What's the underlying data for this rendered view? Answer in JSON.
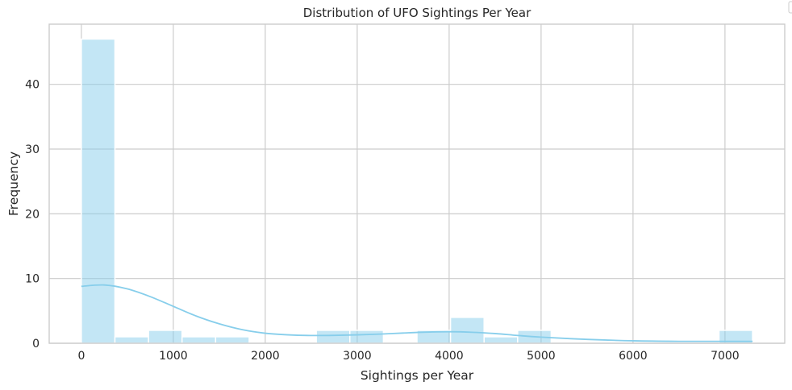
{
  "chart_data": {
    "type": "bar",
    "subtype": "histogram",
    "title": "Distribution of UFO Sightings Per Year",
    "xlabel": "Sightings per Year",
    "ylabel": "Frequency",
    "xlim": [
      -350,
      7650
    ],
    "ylim": [
      0,
      49.3
    ],
    "x_ticks": [
      0,
      1000,
      2000,
      3000,
      4000,
      5000,
      6000,
      7000
    ],
    "y_ticks": [
      0,
      10,
      20,
      30,
      40
    ],
    "grid": true,
    "bin_start": 0,
    "bin_width": 365,
    "bin_counts": [
      47,
      1,
      2,
      1,
      1,
      0,
      0,
      2,
      2,
      0,
      2,
      4,
      1,
      2,
      0,
      0,
      0,
      0,
      0,
      2
    ],
    "kde": {
      "x": [
        0,
        250,
        500,
        750,
        1000,
        1250,
        1500,
        1750,
        2000,
        2250,
        2500,
        2750,
        3000,
        3250,
        3500,
        3750,
        4000,
        4250,
        4500,
        4750,
        5000,
        5500,
        6000,
        6500,
        7000,
        7300
      ],
      "y": [
        8.8,
        9.0,
        8.4,
        7.2,
        5.7,
        4.2,
        3.0,
        2.1,
        1.55,
        1.3,
        1.2,
        1.22,
        1.3,
        1.42,
        1.58,
        1.72,
        1.78,
        1.7,
        1.5,
        1.2,
        0.95,
        0.6,
        0.38,
        0.3,
        0.3,
        0.3
      ]
    },
    "colors": {
      "bar": "#87ceeb",
      "kde": "#87ceeb",
      "grid": "#cccccc"
    },
    "legend": {
      "placement": "top-right",
      "entries": []
    }
  }
}
